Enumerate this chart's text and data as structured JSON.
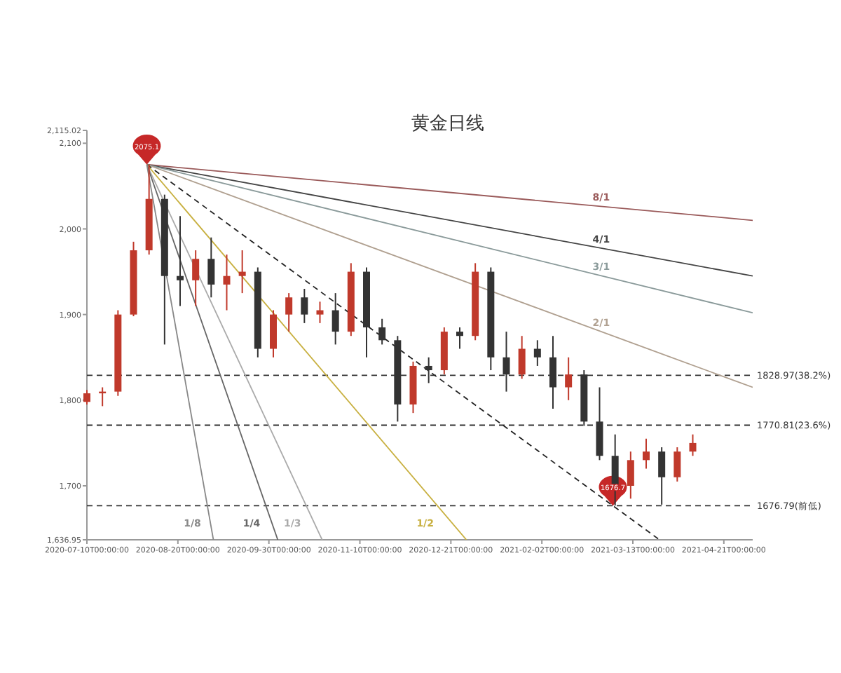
{
  "chart_data": {
    "type": "candlestick",
    "title": "黄金日线",
    "x": [
      "2020-07-10",
      "2020-07-17",
      "2020-07-24",
      "2020-07-31",
      "2020-08-07",
      "2020-08-14",
      "2020-08-21",
      "2020-08-28",
      "2020-09-04",
      "2020-09-11",
      "2020-09-18",
      "2020-09-25",
      "2020-10-02",
      "2020-10-09",
      "2020-10-16",
      "2020-10-23",
      "2020-10-30",
      "2020-11-06",
      "2020-11-13",
      "2020-11-20",
      "2020-11-27",
      "2020-12-04",
      "2020-12-11",
      "2020-12-18",
      "2020-12-25",
      "2021-01-01",
      "2021-01-08",
      "2021-01-15",
      "2021-01-22",
      "2021-01-29",
      "2021-02-05",
      "2021-02-12",
      "2021-02-19",
      "2021-02-26",
      "2021-03-05",
      "2021-03-12",
      "2021-03-19",
      "2021-03-26",
      "2021-04-02",
      "2021-04-09"
    ],
    "ohlc": [
      [
        1798,
        1812,
        1795,
        1808
      ],
      [
        1808,
        1815,
        1793,
        1810
      ],
      [
        1810,
        1905,
        1805,
        1900
      ],
      [
        1900,
        1985,
        1898,
        1975
      ],
      [
        1975,
        2075,
        1970,
        2035
      ],
      [
        2035,
        2040,
        1865,
        1945
      ],
      [
        1945,
        2015,
        1910,
        1940
      ],
      [
        1940,
        1975,
        1910,
        1965
      ],
      [
        1965,
        1990,
        1920,
        1935
      ],
      [
        1935,
        1970,
        1905,
        1945
      ],
      [
        1945,
        1975,
        1925,
        1950
      ],
      [
        1950,
        1955,
        1850,
        1860
      ],
      [
        1860,
        1905,
        1850,
        1900
      ],
      [
        1900,
        1925,
        1880,
        1920
      ],
      [
        1920,
        1930,
        1890,
        1900
      ],
      [
        1900,
        1915,
        1890,
        1905
      ],
      [
        1905,
        1925,
        1865,
        1880
      ],
      [
        1880,
        1960,
        1875,
        1950
      ],
      [
        1950,
        1955,
        1850,
        1885
      ],
      [
        1885,
        1895,
        1865,
        1870
      ],
      [
        1870,
        1875,
        1775,
        1795
      ],
      [
        1795,
        1845,
        1785,
        1840
      ],
      [
        1840,
        1850,
        1820,
        1835
      ],
      [
        1835,
        1885,
        1830,
        1880
      ],
      [
        1880,
        1885,
        1860,
        1875
      ],
      [
        1875,
        1960,
        1870,
        1950
      ],
      [
        1950,
        1955,
        1835,
        1850
      ],
      [
        1850,
        1880,
        1810,
        1830
      ],
      [
        1830,
        1875,
        1825,
        1860
      ],
      [
        1860,
        1870,
        1840,
        1850
      ],
      [
        1850,
        1875,
        1790,
        1815
      ],
      [
        1815,
        1850,
        1800,
        1830
      ],
      [
        1830,
        1835,
        1770,
        1775
      ],
      [
        1775,
        1815,
        1730,
        1735
      ],
      [
        1735,
        1760,
        1677,
        1700
      ],
      [
        1700,
        1740,
        1685,
        1730
      ],
      [
        1730,
        1755,
        1720,
        1740
      ],
      [
        1740,
        1745,
        1678,
        1710
      ],
      [
        1710,
        1745,
        1705,
        1740
      ],
      [
        1740,
        1760,
        1735,
        1750
      ]
    ],
    "colors": [
      "#c0392b",
      "#c0392b",
      "#c0392b",
      "#c0392b",
      "#c0392b",
      "#333333",
      "#333333",
      "#c0392b",
      "#333333",
      "#c0392b",
      "#c0392b",
      "#333333",
      "#c0392b",
      "#c0392b",
      "#333333",
      "#c0392b",
      "#333333",
      "#c0392b",
      "#333333",
      "#333333",
      "#333333",
      "#c0392b",
      "#333333",
      "#c0392b",
      "#333333",
      "#c0392b",
      "#333333",
      "#333333",
      "#c0392b",
      "#333333",
      "#333333",
      "#c0392b",
      "#333333",
      "#333333",
      "#333333",
      "#c0392b",
      "#c0392b",
      "#333333",
      "#c0392b",
      "#c0392b"
    ],
    "series": [
      {
        "name": "8/1",
        "type": "line",
        "color": "#9a5a5a",
        "x": [
          "2020-08-06",
          "2021-05-06"
        ],
        "values": [
          2075.1,
          2010
        ]
      },
      {
        "name": "4/1",
        "type": "line",
        "color": "#444444",
        "x": [
          "2020-08-06",
          "2021-05-06"
        ],
        "values": [
          2075.1,
          1945
        ]
      },
      {
        "name": "3/1",
        "type": "line",
        "color": "#8a9a9a",
        "x": [
          "2020-08-06",
          "2021-05-06"
        ],
        "values": [
          2075.1,
          1902
        ]
      },
      {
        "name": "2/1",
        "type": "line",
        "color": "#b0a090",
        "x": [
          "2020-08-06",
          "2021-05-06"
        ],
        "values": [
          2075.1,
          1815
        ]
      },
      {
        "type": "line",
        "color": "#222222",
        "line_style": "dashed",
        "x": [
          "2020-08-06",
          "2021-03-25"
        ],
        "values": [
          2075.1,
          1636.95
        ]
      },
      {
        "name": "1/2",
        "type": "line",
        "color": "#c8b040",
        "x": [
          "2020-08-06",
          "2020-12-28"
        ],
        "values": [
          2075.1,
          1636.95
        ]
      },
      {
        "name": "1/3",
        "type": "line",
        "color": "#aaaaaa",
        "x": [
          "2020-08-06",
          "2020-10-24"
        ],
        "values": [
          2075.1,
          1636.95
        ]
      },
      {
        "name": "1/4",
        "type": "line",
        "color": "#666666",
        "x": [
          "2020-08-06",
          "2020-10-04"
        ],
        "values": [
          2075.1,
          1636.95
        ]
      },
      {
        "name": "1/8",
        "type": "line",
        "color": "#888888",
        "x": [
          "2020-08-06",
          "2020-09-05"
        ],
        "values": [
          2075.1,
          1636.95
        ]
      }
    ],
    "ref_lines": [
      {
        "axis": "y",
        "value": 1828.97,
        "label": "1828.97(38.2%)",
        "line_style": "dashed"
      },
      {
        "axis": "y",
        "value": 1770.81,
        "label": "1770.81(23.6%)",
        "line_style": "dashed"
      },
      {
        "axis": "y",
        "value": 1676.79,
        "label": "1676.79(前低)",
        "line_style": "dashed"
      }
    ],
    "annotations": [
      {
        "text": "2075.1",
        "x": "2020-08-06",
        "y": 2075.1
      },
      {
        "text": "1676.7",
        "x": "2021-03-04",
        "y": 1676.7
      }
    ],
    "xlim": [
      "2020-07-10",
      "2021-05-06"
    ],
    "xticks": [
      {
        "value": "2020-07-10",
        "label": "2020-07-10T00:00:00"
      },
      {
        "value": "2020-08-20",
        "label": "2020-08-20T00:00:00"
      },
      {
        "value": "2020-09-30",
        "label": "2020-09-30T00:00:00"
      },
      {
        "value": "2020-11-10",
        "label": "2020-11-10T00:00:00"
      },
      {
        "value": "2020-12-21",
        "label": "2020-12-21T00:00:00"
      },
      {
        "value": "2021-01-31",
        "label": "2021-02-02T00:00:00"
      },
      {
        "value": "2021-03-13",
        "label": "2021-03-13T00:00:00"
      },
      {
        "value": "2021-04-23",
        "label": "2021-04-21T00:00:00"
      }
    ],
    "ylim": [
      1636.95,
      2115.02
    ],
    "yticks": [
      {
        "value": 1636.95,
        "label": "1,636.95"
      },
      {
        "value": 1700,
        "label": "1,700"
      },
      {
        "value": 1800,
        "label": "1,800"
      },
      {
        "value": 1900,
        "label": "1,900"
      },
      {
        "value": 2000,
        "label": "2,000"
      },
      {
        "value": 2100,
        "label": "2,100"
      },
      {
        "value": 2115.02,
        "label": "2,115.02"
      }
    ],
    "grid": false
  }
}
